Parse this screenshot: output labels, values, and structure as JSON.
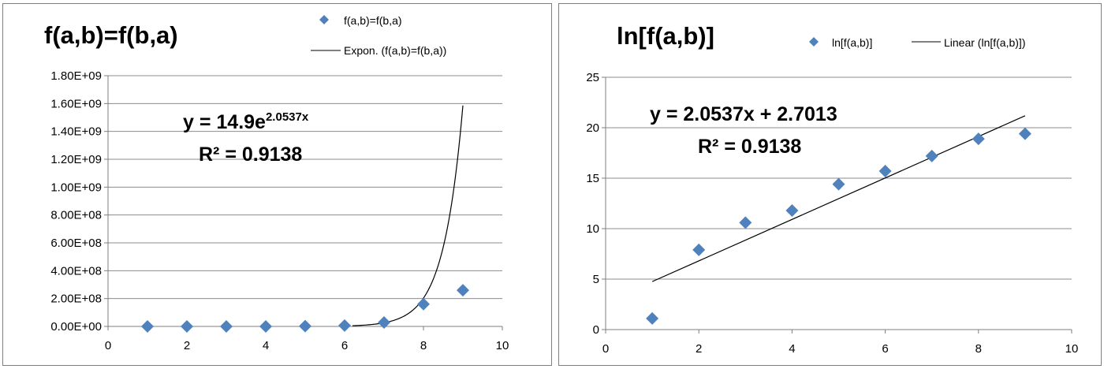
{
  "chart_data": [
    {
      "type": "scatter",
      "title": "f(a,b)=f(b,a)",
      "xlabel": "",
      "ylabel": "",
      "xlim": [
        0,
        10
      ],
      "ylim": [
        0,
        1800000000
      ],
      "x_ticks": [
        "0",
        "2",
        "4",
        "6",
        "8",
        "10"
      ],
      "y_ticks": [
        "0.00E+00",
        "2.00E+08",
        "4.00E+08",
        "6.00E+08",
        "8.00E+08",
        "1.00E+09",
        "1.20E+09",
        "1.40E+09",
        "1.60E+09",
        "1.80E+09"
      ],
      "grid": true,
      "legend_position": "top-right",
      "series": [
        {
          "name": "f(a,b)=f(b,a)",
          "marker": "diamond",
          "color": "#4f81bd",
          "x": [
            1,
            2,
            3,
            4,
            5,
            6,
            7,
            8,
            9
          ],
          "y": [
            3,
            2700,
            40000,
            130000,
            1800000,
            6600000,
            28000000,
            160000000,
            260000000
          ]
        }
      ],
      "trendline": {
        "name": "Expon. (f(a,b)=f(b,a))",
        "kind": "exponential",
        "a": 14.9,
        "b": 2.0537,
        "x_range": [
          6.2,
          9
        ],
        "color": "#000000"
      },
      "annotations": {
        "equation": "y = 14.9e",
        "exponent": "2.0537x",
        "r2": "R² = 0.9138"
      }
    },
    {
      "type": "scatter",
      "title": "ln[f(a,b)]",
      "xlabel": "",
      "ylabel": "",
      "xlim": [
        0,
        10
      ],
      "ylim": [
        0,
        25
      ],
      "x_ticks": [
        "0",
        "2",
        "4",
        "6",
        "8",
        "10"
      ],
      "y_ticks": [
        "0",
        "5",
        "10",
        "15",
        "20",
        "25"
      ],
      "grid": true,
      "legend_position": "top-right",
      "series": [
        {
          "name": "ln[f(a,b)]",
          "marker": "diamond",
          "color": "#4f81bd",
          "x": [
            1,
            2,
            3,
            4,
            5,
            6,
            7,
            8,
            9
          ],
          "y": [
            1.1,
            7.9,
            10.6,
            11.8,
            14.4,
            15.7,
            17.2,
            18.9,
            19.4
          ]
        }
      ],
      "trendline": {
        "name": "Linear (ln[f(a,b)])",
        "kind": "linear",
        "slope": 2.0537,
        "intercept": 2.7013,
        "x_range": [
          1,
          9
        ],
        "color": "#000000"
      },
      "annotations": {
        "equation": "y = 2.0537x + 2.7013",
        "r2": "R² = 0.9138"
      }
    }
  ]
}
